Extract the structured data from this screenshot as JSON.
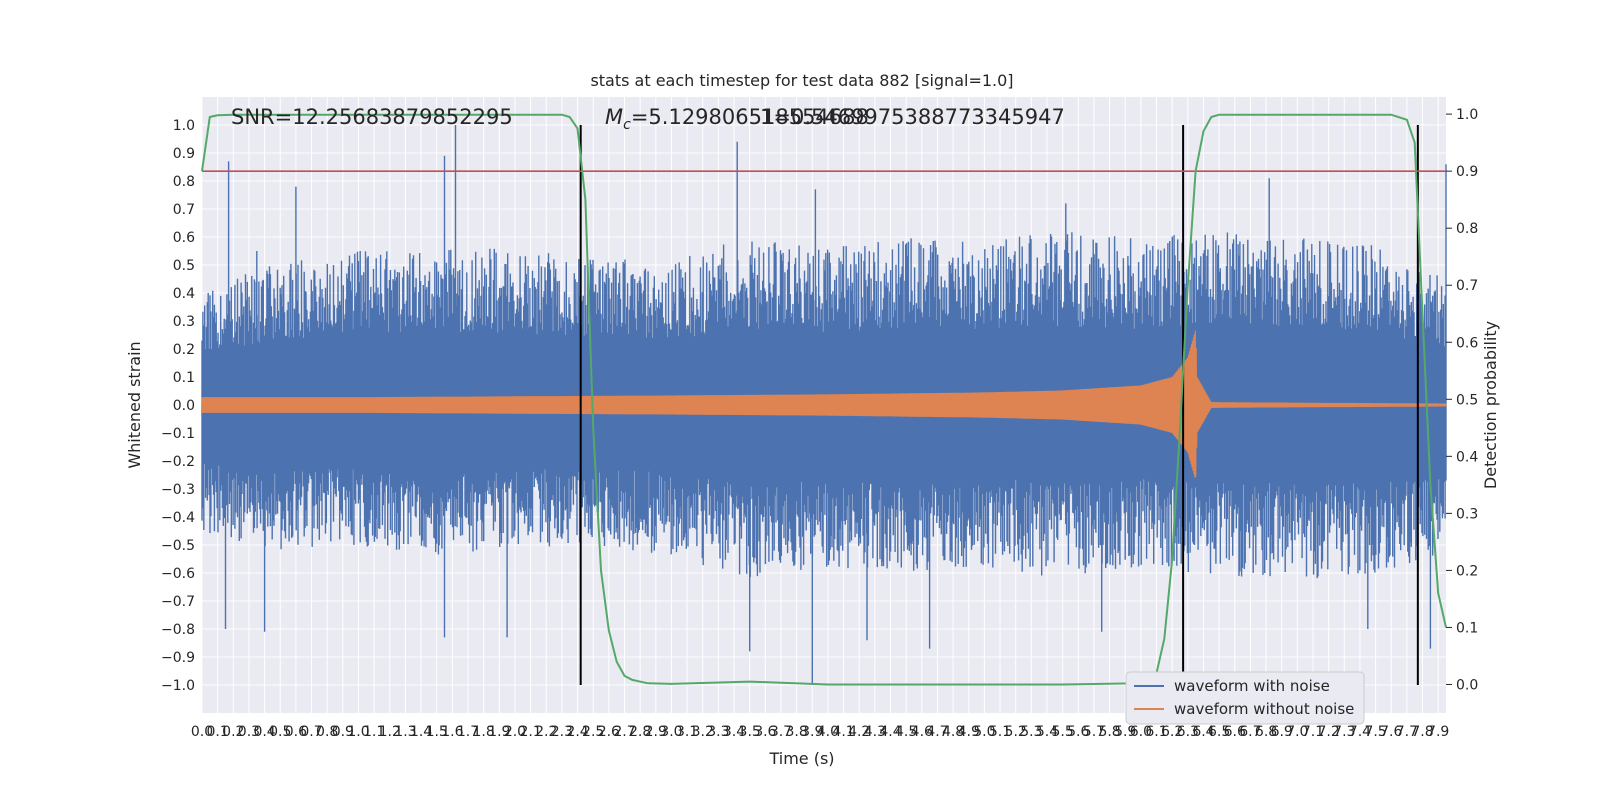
{
  "chart_data": {
    "type": "line",
    "title": "stats at each timestep for test data 882 [signal=1.0]",
    "xlabel": "Time (s)",
    "ylabel": "Whitened strain",
    "y2label": "Detection probability",
    "xlim": [
      0.0,
      7.95
    ],
    "ylim": [
      -1.1,
      1.1
    ],
    "y2lim": [
      -0.05,
      1.03
    ],
    "x_ticks": [
      "0.0",
      "0.1",
      "0.2",
      "0.3",
      "0.4",
      "0.5",
      "0.6",
      "0.7",
      "0.8",
      "0.9",
      "1.0",
      "1.1",
      "1.2",
      "1.3",
      "1.4",
      "1.5",
      "1.6",
      "1.7",
      "1.8",
      "1.9",
      "2.0",
      "2.1",
      "2.2",
      "2.3",
      "2.4",
      "2.5",
      "2.6",
      "2.7",
      "2.8",
      "2.9",
      "3.0",
      "3.1",
      "3.2",
      "3.3",
      "3.4",
      "3.5",
      "3.6",
      "3.7",
      "3.8",
      "3.9",
      "4.0",
      "4.1",
      "4.2",
      "4.3",
      "4.4",
      "4.5",
      "4.6",
      "4.7",
      "4.8",
      "4.9",
      "5.0",
      "5.1",
      "5.2",
      "5.3",
      "5.4",
      "5.5",
      "5.6",
      "5.7",
      "5.8",
      "5.9",
      "6.0",
      "6.1",
      "6.2",
      "6.3",
      "6.4",
      "6.5",
      "6.6",
      "6.7",
      "6.8",
      "6.9",
      "7.0",
      "7.1",
      "7.2",
      "7.3",
      "7.4",
      "7.5",
      "7.6",
      "7.7",
      "7.8",
      "7.9"
    ],
    "y_ticks": [
      "−1.0",
      "−0.9",
      "−0.8",
      "−0.7",
      "−0.6",
      "−0.5",
      "−0.4",
      "−0.3",
      "−0.2",
      "−0.1",
      "0.0",
      "0.1",
      "0.2",
      "0.3",
      "0.4",
      "0.5",
      "0.6",
      "0.7",
      "0.8",
      "0.9",
      "1.0"
    ],
    "y2_ticks": [
      "0.0",
      "0.1",
      "0.2",
      "0.3",
      "0.4",
      "0.5",
      "0.6",
      "0.7",
      "0.8",
      "0.9",
      "1.0"
    ],
    "annotations": {
      "snr": "SNR=12.25683879852295",
      "mc_prefix": "M",
      "mc_sub": "c",
      "mc_value": "=5.129806518554688",
      "overlap_text": "1=0.5469975388773345947"
    },
    "grid": true,
    "legend_placement": "lower-right",
    "legend": [
      {
        "label": "waveform with noise",
        "color": "#4c72b0"
      },
      {
        "label": "waveform without noise",
        "color": "#dd8452"
      }
    ],
    "colors": {
      "noise": "#4c72b0",
      "clean": "#dd8452",
      "probability": "#55a868",
      "threshold": "#c44e52",
      "markers": "#000000",
      "axes_bg": "#eaeaf2",
      "grid": "#ffffff"
    },
    "series": [
      {
        "name": "waveform with noise",
        "kind": "noise-band",
        "envelope_x": [
          0.0,
          0.5,
          1.0,
          1.5,
          2.0,
          2.5,
          3.0,
          3.5,
          4.0,
          4.5,
          5.0,
          5.5,
          6.0,
          6.5,
          7.0,
          7.5,
          7.95
        ],
        "envelope_upper": [
          0.4,
          0.52,
          0.55,
          0.57,
          0.56,
          0.52,
          0.52,
          0.6,
          0.57,
          0.6,
          0.6,
          0.62,
          0.6,
          0.62,
          0.6,
          0.57,
          0.45
        ],
        "envelope_lower": [
          -0.46,
          -0.52,
          -0.5,
          -0.55,
          -0.52,
          -0.5,
          -0.54,
          -0.62,
          -0.58,
          -0.6,
          -0.58,
          -0.62,
          -0.58,
          -0.62,
          -0.62,
          -0.62,
          -0.55
        ],
        "peaks": [
          [
            0.17,
            0.87
          ],
          [
            0.35,
            0.55
          ],
          [
            0.6,
            0.78
          ],
          [
            1.62,
            1.0
          ],
          [
            1.55,
            0.89
          ],
          [
            2.42,
            0.83
          ],
          [
            3.42,
            0.94
          ],
          [
            3.92,
            0.77
          ],
          [
            5.52,
            0.72
          ],
          [
            6.82,
            0.81
          ],
          [
            7.95,
            0.86
          ],
          [
            0.15,
            -0.8
          ],
          [
            0.4,
            -0.81
          ],
          [
            1.55,
            -0.83
          ],
          [
            1.95,
            -0.83
          ],
          [
            3.5,
            -0.88
          ],
          [
            3.9,
            -1.0
          ],
          [
            4.25,
            -0.84
          ],
          [
            4.65,
            -0.87
          ],
          [
            5.75,
            -0.81
          ],
          [
            7.45,
            -0.8
          ],
          [
            7.85,
            -0.87
          ]
        ]
      },
      {
        "name": "waveform without noise",
        "kind": "chirp",
        "envelope_x": [
          0.0,
          1.0,
          2.0,
          3.0,
          4.0,
          5.0,
          5.5,
          6.0,
          6.2,
          6.3,
          6.35,
          6.36,
          6.45,
          7.95
        ],
        "envelope_amp": [
          0.028,
          0.028,
          0.031,
          0.034,
          0.038,
          0.045,
          0.052,
          0.07,
          0.1,
          0.17,
          0.27,
          0.1,
          0.01,
          0.005
        ]
      },
      {
        "name": "detection probability",
        "axis": "y2",
        "x": [
          0.0,
          0.05,
          0.1,
          0.2,
          2.3,
          2.35,
          2.4,
          2.45,
          2.5,
          2.55,
          2.6,
          2.65,
          2.7,
          2.75,
          2.85,
          3.0,
          3.5,
          4.0,
          4.5,
          5.0,
          5.5,
          6.0,
          6.1,
          6.15,
          6.2,
          6.25,
          6.3,
          6.35,
          6.4,
          6.45,
          6.5,
          6.6,
          7.6,
          7.7,
          7.75,
          7.8,
          7.85,
          7.9,
          7.95
        ],
        "y": [
          0.9,
          0.995,
          0.998,
          0.999,
          0.999,
          0.995,
          0.975,
          0.85,
          0.45,
          0.2,
          0.095,
          0.04,
          0.015,
          0.008,
          0.002,
          0.001,
          0.005,
          0.0,
          0.0,
          0.0,
          0.0,
          0.002,
          0.02,
          0.08,
          0.22,
          0.45,
          0.7,
          0.9,
          0.97,
          0.995,
          0.999,
          0.999,
          0.999,
          0.99,
          0.95,
          0.65,
          0.35,
          0.16,
          0.1
        ]
      },
      {
        "name": "threshold",
        "axis": "y2",
        "constant": 0.9
      },
      {
        "name": "markers",
        "kind": "vertical-lines",
        "x": [
          2.42,
          6.27,
          7.77
        ]
      }
    ]
  }
}
